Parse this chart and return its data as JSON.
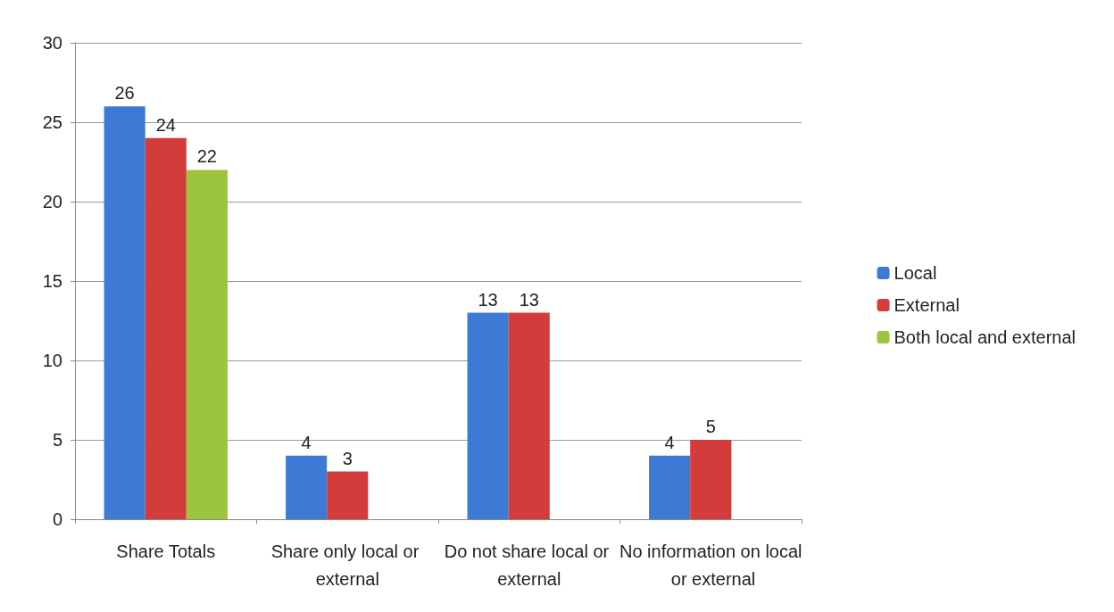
{
  "chart_data": {
    "type": "bar",
    "categories": [
      "Share Totals",
      "Share only local or external",
      "Do not share local or external",
      "No information on local or external"
    ],
    "series": [
      {
        "name": "Local",
        "color": "#3d7ad6",
        "values": [
          26,
          4,
          13,
          4
        ]
      },
      {
        "name": "External",
        "color": "#d43c3c",
        "values": [
          24,
          3,
          13,
          5
        ]
      },
      {
        "name": "Both local and external",
        "color": "#9cc43c",
        "values": [
          22,
          null,
          null,
          null
        ]
      }
    ],
    "ylim": [
      0,
      30
    ],
    "yticks": [
      0,
      5,
      10,
      15,
      20,
      25,
      30
    ],
    "grid": "y",
    "legend": "right",
    "data_labels": true
  }
}
